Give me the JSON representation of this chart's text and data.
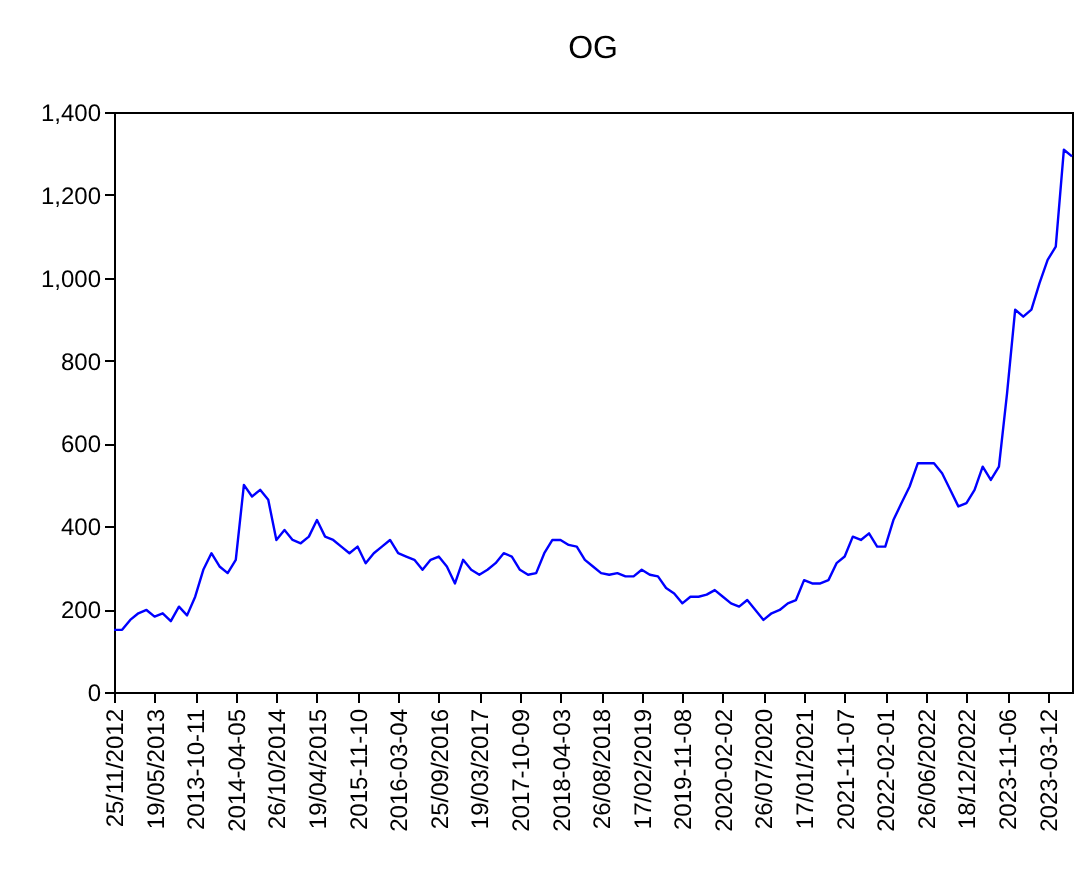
{
  "chart_data": {
    "type": "line",
    "title": "OG",
    "categories": [
      "25/11/2012",
      null,
      null,
      null,
      null,
      "19/05/2013",
      null,
      null,
      null,
      null,
      "2013-10-11",
      null,
      null,
      null,
      null,
      "2014-04-05",
      null,
      null,
      null,
      null,
      "26/10/2014",
      null,
      null,
      null,
      null,
      "19/04/2015",
      null,
      null,
      null,
      null,
      "2015-11-10",
      null,
      null,
      null,
      null,
      "2016-03-04",
      null,
      null,
      null,
      null,
      "25/09/2016",
      null,
      null,
      null,
      null,
      "19/03/2017",
      null,
      null,
      null,
      null,
      "2017-10-09",
      null,
      null,
      null,
      null,
      "2018-04-03",
      null,
      null,
      null,
      null,
      "26/08/2018",
      null,
      null,
      null,
      null,
      "17/02/2019",
      null,
      null,
      null,
      null,
      "2019-11-08",
      null,
      null,
      null,
      null,
      "2020-02-02",
      null,
      null,
      null,
      null,
      "26/07/2020",
      null,
      null,
      null,
      null,
      "17/01/2021",
      null,
      null,
      null,
      null,
      "2021-11-07",
      null,
      null,
      null,
      null,
      "2022-02-01",
      null,
      null,
      null,
      null,
      "26/06/2022",
      null,
      null,
      null,
      null,
      "18/12/2022",
      null,
      null,
      null,
      null,
      "2023-11-06",
      null,
      null,
      null,
      null,
      "2023-03-12",
      null,
      null,
      null
    ],
    "series": [
      {
        "color": "#0000ff",
        "values": [
          150,
          150,
          174,
          190,
          198,
          182,
          190,
          171,
          206,
          185,
          230,
          295,
          335,
          303,
          287,
          319,
          500,
          472,
          488,
          464,
          367,
          391,
          367,
          359,
          375,
          415,
          375,
          367,
          351,
          335,
          351,
          311,
          335,
          351,
          367,
          335,
          327,
          319,
          295,
          319,
          327,
          303,
          262,
          319,
          295,
          283,
          295,
          311,
          335,
          327,
          295,
          283,
          287,
          335,
          367,
          367,
          355,
          351,
          319,
          303,
          287,
          283,
          287,
          279,
          279,
          295,
          283,
          279,
          251,
          238,
          214,
          230,
          230,
          235,
          246,
          230,
          214,
          206,
          222,
          198,
          174,
          190,
          198,
          214,
          222,
          270,
          262,
          262,
          270,
          311,
          327,
          375,
          367,
          383,
          351,
          351,
          415,
          456,
          496,
          552,
          552,
          552,
          528,
          488,
          448,
          456,
          488,
          544,
          512,
          544,
          721,
          923,
          906,
          923,
          987,
          1043,
          1075,
          1309,
          1293
        ]
      }
    ],
    "ylim": [
      0,
      1400
    ],
    "yticks": [
      0,
      200,
      400,
      600,
      800,
      {
        "value": 1000,
        "label": "1,000"
      },
      {
        "value": 1200,
        "label": "1,200"
      },
      {
        "value": 1400,
        "label": "1,400"
      }
    ],
    "grid": false,
    "line_style": "solid"
  }
}
